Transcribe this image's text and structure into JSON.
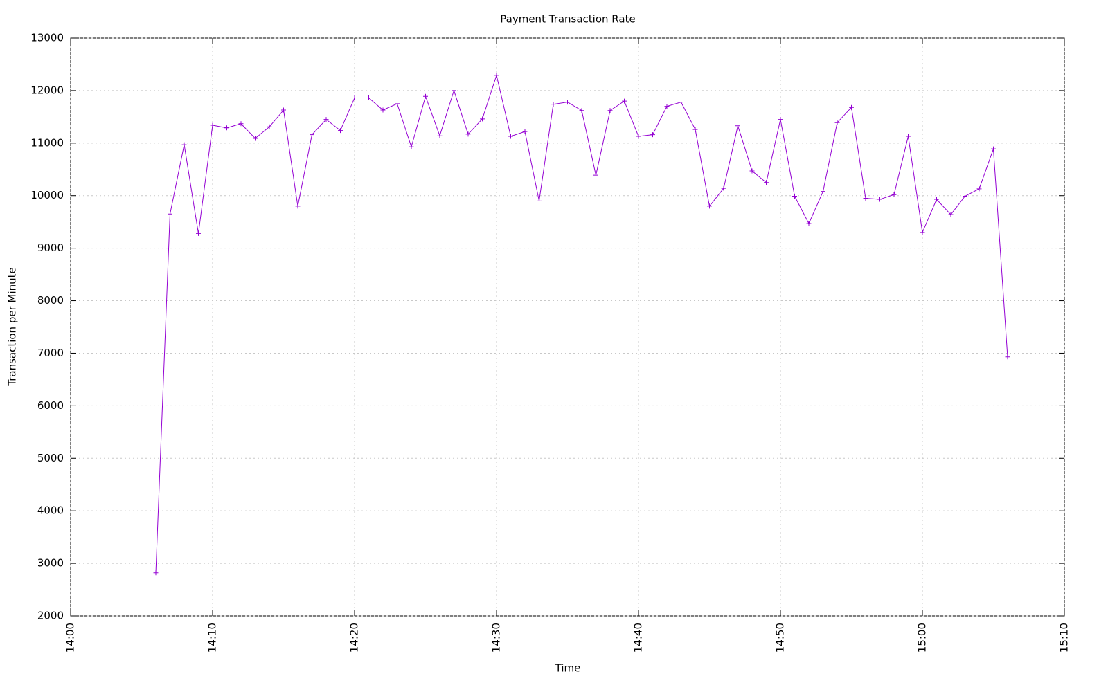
{
  "chart_data": {
    "type": "line",
    "title": "Payment Transaction Rate",
    "x_label": "Time",
    "y_label": "Transaction per Minute",
    "x": [
      "14:06",
      "14:07",
      "14:08",
      "14:09",
      "14:10",
      "14:11",
      "14:12",
      "14:13",
      "14:14",
      "14:15",
      "14:16",
      "14:17",
      "14:18",
      "14:19",
      "14:20",
      "14:21",
      "14:22",
      "14:23",
      "14:24",
      "14:25",
      "14:26",
      "14:27",
      "14:28",
      "14:29",
      "14:30",
      "14:31",
      "14:32",
      "14:33",
      "14:34",
      "14:35",
      "14:36",
      "14:37",
      "14:38",
      "14:39",
      "14:40",
      "14:41",
      "14:42",
      "14:43",
      "14:44",
      "14:45",
      "14:46",
      "14:47",
      "14:48",
      "14:49",
      "14:50",
      "14:51",
      "14:52",
      "14:53",
      "14:54",
      "14:55",
      "14:56",
      "14:57",
      "14:58",
      "14:59",
      "15:00",
      "15:01",
      "15:02",
      "15:03",
      "15:04",
      "15:05",
      "15:06"
    ],
    "series": [
      {
        "color": "#9400d3",
        "values": [
          2820,
          9650,
          10970,
          9280,
          11340,
          11290,
          11370,
          11090,
          11310,
          11630,
          9800,
          11160,
          11450,
          11240,
          11860,
          11860,
          11630,
          11750,
          10930,
          11890,
          11140,
          12000,
          11170,
          11460,
          12290,
          11130,
          11220,
          9900,
          11740,
          11780,
          11620,
          10390,
          11620,
          11800,
          11130,
          11160,
          11700,
          11780,
          11260,
          9800,
          10140,
          11330,
          10470,
          10250,
          11450,
          9990,
          9470,
          10080,
          11390,
          11680,
          9950,
          9930,
          10020,
          11130,
          9300,
          9930,
          9640,
          9990,
          10130,
          10890,
          6930
        ]
      }
    ],
    "xlim": [
      "14:00",
      "15:10"
    ],
    "xticks": [
      "14:00",
      "14:10",
      "14:20",
      "14:30",
      "14:40",
      "14:50",
      "15:00",
      "15:10"
    ],
    "ylim": [
      2000,
      13000
    ],
    "yticks": [
      2000,
      3000,
      4000,
      5000,
      6000,
      7000,
      8000,
      9000,
      10000,
      11000,
      12000,
      13000
    ],
    "grid": true
  }
}
